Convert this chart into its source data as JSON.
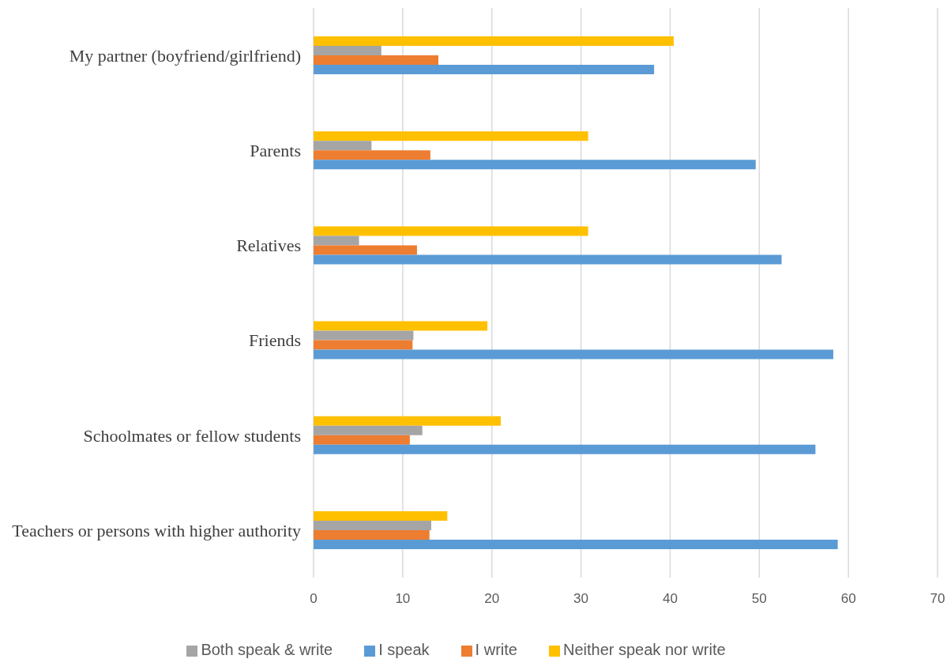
{
  "chart_data": {
    "type": "bar",
    "orientation": "horizontal",
    "categories": [
      "My partner (boyfriend/girlfriend)",
      "Parents",
      "Relatives",
      "Friends",
      "Schoolmates or fellow students",
      "Teachers or persons with higher authority"
    ],
    "series": [
      {
        "name": "Neither speak nor write",
        "color": "#ffc000",
        "values": [
          40.4,
          30.8,
          30.8,
          19.5,
          21.0,
          15.0
        ]
      },
      {
        "name": "Both speak & write",
        "color": "#a5a5a5",
        "values": [
          7.6,
          6.5,
          5.1,
          11.2,
          12.2,
          13.2
        ]
      },
      {
        "name": "I write",
        "color": "#ed7d31",
        "values": [
          14.0,
          13.1,
          11.6,
          11.1,
          10.8,
          13.0
        ]
      },
      {
        "name": "I speak",
        "color": "#5b9bd5",
        "values": [
          38.2,
          49.6,
          52.5,
          58.3,
          56.3,
          58.8
        ]
      }
    ],
    "xlim": [
      0,
      70
    ],
    "xticks": [
      0,
      10,
      20,
      30,
      40,
      50,
      60,
      70
    ],
    "grid": "x",
    "legend": "bottom"
  }
}
